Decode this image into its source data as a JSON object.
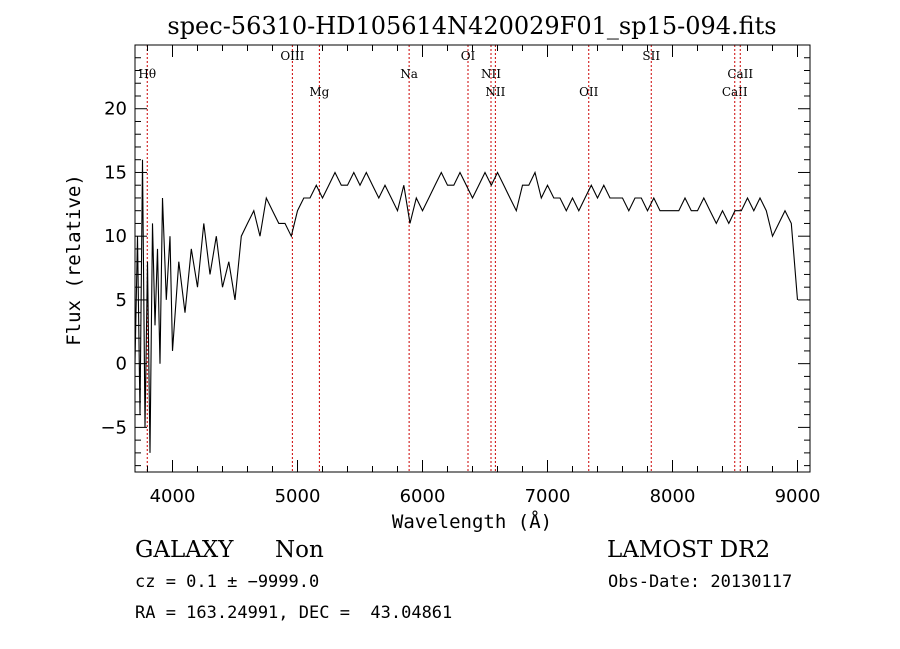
{
  "chart_data": {
    "type": "line",
    "title": "spec-56310-HD105614N420029F01_sp15-094.fits",
    "xlabel": "Wavelength (Å)",
    "ylabel": "Flux (relative)",
    "xlim": [
      3700,
      9100
    ],
    "ylim": [
      -8.5,
      25
    ],
    "x_ticks": [
      "4000",
      "5000",
      "6000",
      "7000",
      "8000",
      "9000"
    ],
    "y_ticks": [
      "−5",
      "0",
      "5",
      "10",
      "15",
      "20"
    ],
    "x_tick_values": [
      4000,
      5000,
      6000,
      7000,
      8000,
      9000
    ],
    "y_tick_values": [
      -5,
      0,
      5,
      10,
      15,
      20
    ],
    "grid": false,
    "line_color": "#000000",
    "marker_color": "#cc0000",
    "series": [
      {
        "x": [
          3700,
          3720,
          3740,
          3760,
          3780,
          3800,
          3820,
          3840,
          3860,
          3880,
          3900,
          3920,
          3950,
          3980,
          4000,
          4050,
          4100,
          4150,
          4200,
          4250,
          4300,
          4350,
          4400,
          4450,
          4500,
          4550,
          4600,
          4650,
          4700,
          4750,
          4800,
          4850,
          4900,
          4950,
          5000,
          5050,
          5100,
          5150,
          5200,
          5250,
          5300,
          5350,
          5400,
          5450,
          5500,
          5550,
          5600,
          5650,
          5700,
          5750,
          5800,
          5850,
          5900,
          5950,
          6000,
          6050,
          6100,
          6150,
          6200,
          6250,
          6300,
          6350,
          6400,
          6450,
          6500,
          6550,
          6600,
          6650,
          6700,
          6750,
          6800,
          6850,
          6900,
          6950,
          7000,
          7050,
          7100,
          7150,
          7200,
          7250,
          7300,
          7350,
          7400,
          7450,
          7500,
          7550,
          7600,
          7650,
          7700,
          7750,
          7800,
          7850,
          7900,
          7950,
          8000,
          8050,
          8100,
          8150,
          8200,
          8250,
          8300,
          8350,
          8400,
          8450,
          8500,
          8550,
          8600,
          8650,
          8700,
          8750,
          8800,
          8850,
          8900,
          8950,
          9000
        ],
        "values": [
          0,
          10,
          -4,
          16,
          -5,
          8,
          -7,
          11,
          3,
          9,
          0,
          13,
          5,
          10,
          1,
          8,
          4,
          9,
          6,
          11,
          7,
          10,
          6,
          8,
          5,
          10,
          11,
          12,
          10,
          13,
          12,
          11,
          11,
          10,
          12,
          13,
          13,
          14,
          13,
          14,
          15,
          14,
          14,
          15,
          14,
          15,
          14,
          13,
          14,
          13,
          12,
          14,
          11,
          13,
          12,
          13,
          14,
          15,
          14,
          14,
          15,
          14,
          13,
          14,
          15,
          14,
          15,
          14,
          13,
          12,
          14,
          14,
          15,
          13,
          14,
          13,
          13,
          12,
          13,
          12,
          13,
          14,
          13,
          14,
          13,
          13,
          13,
          12,
          13,
          13,
          12,
          13,
          12,
          12,
          12,
          12,
          13,
          12,
          12,
          13,
          12,
          11,
          12,
          11,
          12,
          12,
          13,
          12,
          13,
          12,
          10,
          11,
          12,
          11,
          5
        ]
      }
    ],
    "lines": [
      {
        "label": "Hθ",
        "x": 3798,
        "tier": 1
      },
      {
        "label": "OIII",
        "x": 4959,
        "tier": 0
      },
      {
        "label": "Mg",
        "x": 5175,
        "tier": 2
      },
      {
        "label": "Na",
        "x": 5893,
        "tier": 1
      },
      {
        "label": "OI",
        "x": 6364,
        "tier": 0
      },
      {
        "label": "NII",
        "x": 6548,
        "tier": 1
      },
      {
        "label": "NII",
        "x": 6583,
        "tier": 2
      },
      {
        "label": "OII",
        "x": 7330,
        "tier": 2
      },
      {
        "label": "SII",
        "x": 7830,
        "tier": 0
      },
      {
        "label": "CaII",
        "x": 8498,
        "tier": 2
      },
      {
        "label": "CaII",
        "x": 8542,
        "tier": 1
      }
    ]
  },
  "info": {
    "object_class": "GALAXY",
    "subclass": "Non",
    "survey": "LAMOST DR2",
    "cz": "cz = 0.1 ± −9999.0",
    "obs_date": "Obs-Date: 20130117",
    "coords": "RA = 163.24991, DEC =  43.04861"
  }
}
